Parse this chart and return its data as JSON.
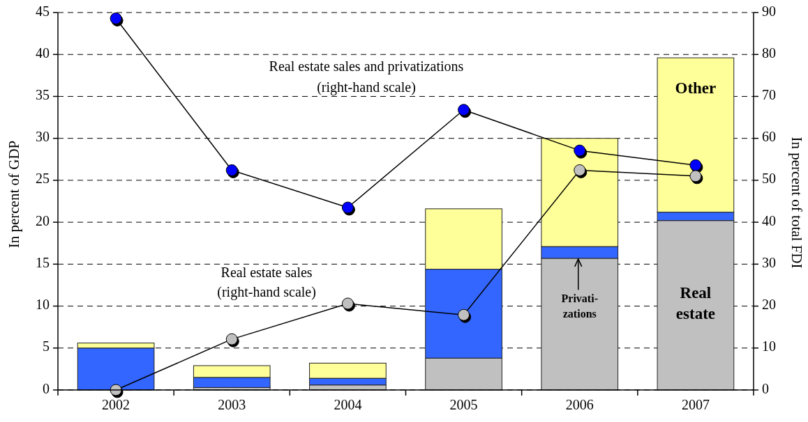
{
  "chart_data": {
    "type": "bar",
    "stacked": true,
    "categories": [
      "2002",
      "2003",
      "2004",
      "2005",
      "2006",
      "2007"
    ],
    "series": [
      {
        "name": "Real estate",
        "color": "#c0c0c0",
        "values": [
          0,
          0.3,
          0.6,
          3.8,
          15.7,
          20.2
        ]
      },
      {
        "name": "Privati-zations",
        "color": "#3366ff",
        "values": [
          5.0,
          1.2,
          0.8,
          10.6,
          1.4,
          1.0
        ]
      },
      {
        "name": "Other",
        "color": "#ffff99",
        "values": [
          0.6,
          1.4,
          1.8,
          7.2,
          12.9,
          18.4
        ]
      },
      {
        "name": "Real estate sales and privatizations (right-hand scale)",
        "type": "line",
        "axis": "y2",
        "color": "#0000ff",
        "values": [
          88.6,
          52.4,
          43.5,
          66.8,
          57.1,
          53.6
        ]
      },
      {
        "name": "Real estate sales (right-hand scale)",
        "type": "line",
        "axis": "y2",
        "color": "#c0c0c0",
        "values": [
          0,
          12.1,
          20.6,
          17.9,
          52.4,
          51.0
        ]
      }
    ],
    "ylim": [
      0,
      45
    ],
    "yticks": [
      0,
      5,
      10,
      15,
      20,
      25,
      30,
      35,
      40,
      45
    ],
    "y2lim": [
      0,
      90
    ],
    "y2ticks": [
      0,
      10,
      20,
      30,
      40,
      50,
      60,
      70,
      80,
      90
    ],
    "ylabel": "In percent of GDP",
    "y2label": "In percent of total FDI",
    "grid": "y",
    "marker": "circle"
  }
}
